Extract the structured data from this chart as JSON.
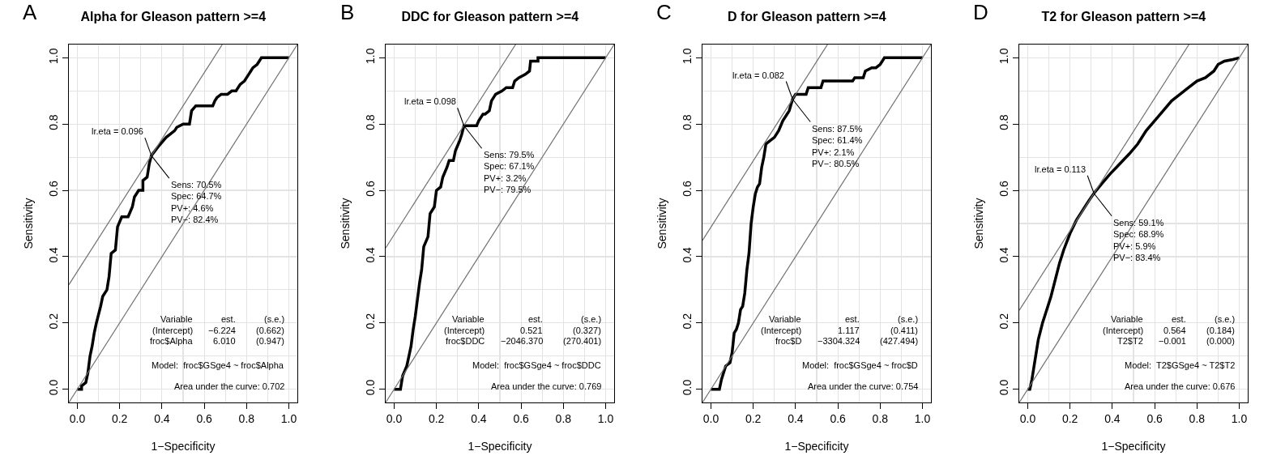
{
  "chart_data": [
    {
      "type": "line",
      "title": "Alpha for Gleason pattern >=4",
      "xlabel": "1−Specificity",
      "ylabel": "Sensitivity",
      "xlim": [
        -0.04,
        1.04
      ],
      "ylim": [
        -0.04,
        1.04
      ],
      "xticks": [
        {
          "value": 0,
          "label": "0.0"
        },
        {
          "value": 0.2,
          "label": "0.2"
        },
        {
          "value": 0.4,
          "label": "0.4"
        },
        {
          "value": 0.6,
          "label": "0.6"
        },
        {
          "value": 0.8,
          "label": "0.8"
        },
        {
          "value": 1,
          "label": "1.0"
        }
      ],
      "yticks": [
        {
          "value": 0,
          "label": "0.0"
        },
        {
          "value": 0.2,
          "label": "0.2"
        },
        {
          "value": 0.4,
          "label": "0.4"
        },
        {
          "value": 0.6,
          "label": "0.6"
        },
        {
          "value": 0.8,
          "label": "0.8"
        },
        {
          "value": 1,
          "label": "1.0"
        }
      ],
      "grid": true,
      "line_style": "solid",
      "series": [
        {
          "color": "#000000",
          "x": [
            0,
            0.02,
            0.02,
            0.04,
            0.05,
            0.06,
            0.07,
            0.08,
            0.09,
            0.11,
            0.12,
            0.14,
            0.15,
            0.16,
            0.18,
            0.19,
            0.21,
            0.24,
            0.26,
            0.27,
            0.29,
            0.31,
            0.31,
            0.33,
            0.34,
            0.35,
            0.38,
            0.42,
            0.46,
            0.47,
            0.5,
            0.53,
            0.54,
            0.56,
            0.64,
            0.65,
            0.66,
            0.68,
            0.71,
            0.73,
            0.75,
            0.77,
            0.79,
            0.8,
            0.81,
            0.82,
            0.83,
            0.85,
            0.86,
            0.87,
            1
          ],
          "values": [
            0,
            0,
            0.01,
            0.02,
            0.05,
            0.1,
            0.13,
            0.17,
            0.2,
            0.25,
            0.28,
            0.3,
            0.34,
            0.41,
            0.42,
            0.49,
            0.52,
            0.52,
            0.55,
            0.58,
            0.6,
            0.6,
            0.63,
            0.64,
            0.68,
            0.705,
            0.73,
            0.76,
            0.78,
            0.79,
            0.8,
            0.8,
            0.84,
            0.855,
            0.855,
            0.87,
            0.88,
            0.89,
            0.89,
            0.9,
            0.9,
            0.92,
            0.93,
            0.94,
            0.95,
            0.96,
            0.97,
            0.98,
            0.99,
            1,
            1
          ]
        },
        {
          "color": "#707070",
          "x": [
            -0.04,
            1.04
          ],
          "values": [
            -0.04,
            1.04
          ]
        },
        {
          "color": "#707070",
          "x": [
            -0.04,
            0.685
          ],
          "values": [
            0.315,
            1.04
          ]
        }
      ],
      "annotations": [
        "A",
        {
          "text": "lr.eta = 0.096",
          "x": 0.35,
          "y": 0.705
        },
        {
          "text": "Sens: 70.5%\nSpec: 64.7%\nPV+: 4.6%\nPV−: 82.4%",
          "x": 0.35,
          "y": 0.705
        },
        "Variable  est.  (s.e.)",
        "(Intercept)  −6.224  (0.662)",
        "froc$Alpha  6.010  (0.947)",
        "Model:  froc$GSge4 ~ froc$Alpha",
        "Area under the curve: 0.702"
      ]
    },
    {
      "type": "line",
      "title": "DDC for Gleason pattern >=4",
      "xlabel": "1−Specificity",
      "ylabel": "Sensitivity",
      "xlim": [
        -0.04,
        1.04
      ],
      "ylim": [
        -0.04,
        1.04
      ],
      "xticks": [
        {
          "value": 0,
          "label": "0.0"
        },
        {
          "value": 0.2,
          "label": "0.2"
        },
        {
          "value": 0.4,
          "label": "0.4"
        },
        {
          "value": 0.6,
          "label": "0.6"
        },
        {
          "value": 0.8,
          "label": "0.8"
        },
        {
          "value": 1,
          "label": "1.0"
        }
      ],
      "yticks": [
        {
          "value": 0,
          "label": "0.0"
        },
        {
          "value": 0.2,
          "label": "0.2"
        },
        {
          "value": 0.4,
          "label": "0.4"
        },
        {
          "value": 0.6,
          "label": "0.6"
        },
        {
          "value": 0.8,
          "label": "0.8"
        },
        {
          "value": 1,
          "label": "1.0"
        }
      ],
      "grid": true,
      "line_style": "solid",
      "series": [
        {
          "color": "#000000",
          "x": [
            0,
            0.03,
            0.04,
            0.06,
            0.07,
            0.08,
            0.09,
            0.1,
            0.11,
            0.12,
            0.13,
            0.14,
            0.16,
            0.17,
            0.19,
            0.2,
            0.22,
            0.23,
            0.25,
            0.26,
            0.28,
            0.29,
            0.31,
            0.32,
            0.33,
            0.39,
            0.4,
            0.42,
            0.43,
            0.45,
            0.46,
            0.48,
            0.51,
            0.53,
            0.56,
            0.57,
            0.59,
            0.62,
            0.64,
            0.645,
            0.68,
            0.68,
            1
          ],
          "values": [
            0,
            0,
            0.04,
            0.07,
            0.1,
            0.13,
            0.18,
            0.22,
            0.27,
            0.32,
            0.36,
            0.43,
            0.46,
            0.53,
            0.55,
            0.6,
            0.61,
            0.64,
            0.67,
            0.69,
            0.69,
            0.72,
            0.75,
            0.77,
            0.795,
            0.795,
            0.81,
            0.83,
            0.83,
            0.84,
            0.87,
            0.89,
            0.9,
            0.91,
            0.91,
            0.93,
            0.94,
            0.95,
            0.96,
            0.99,
            0.99,
            1,
            1
          ]
        },
        {
          "color": "#707070",
          "x": [
            -0.04,
            1.04
          ],
          "values": [
            -0.04,
            1.04
          ]
        },
        {
          "color": "#707070",
          "x": [
            -0.04,
            0.574
          ],
          "values": [
            0.426,
            1.04
          ]
        }
      ],
      "annotations": [
        "B",
        {
          "text": "lr.eta = 0.098",
          "x": 0.33,
          "y": 0.795
        },
        {
          "text": "Sens: 79.5%\nSpec: 67.1%\nPV+: 3.2%\nPV−: 79.5%",
          "x": 0.33,
          "y": 0.795
        },
        "Variable  est.  (s.e.)",
        "(Intercept)  0.521  (0.327)",
        "froc$DDC  −2046.370  (270.401)",
        "Model:  froc$GSge4 ~ froc$DDC",
        "Area under the curve: 0.769"
      ]
    },
    {
      "type": "line",
      "title": "D for Gleason pattern >=4",
      "xlabel": "1−Specificity",
      "ylabel": "Sensitivity",
      "xlim": [
        -0.04,
        1.04
      ],
      "ylim": [
        -0.04,
        1.04
      ],
      "xticks": [
        {
          "value": 0,
          "label": "0.0"
        },
        {
          "value": 0.2,
          "label": "0.2"
        },
        {
          "value": 0.4,
          "label": "0.4"
        },
        {
          "value": 0.6,
          "label": "0.6"
        },
        {
          "value": 0.8,
          "label": "0.8"
        },
        {
          "value": 1,
          "label": "1.0"
        }
      ],
      "yticks": [
        {
          "value": 0,
          "label": "0.0"
        },
        {
          "value": 0.2,
          "label": "0.2"
        },
        {
          "value": 0.4,
          "label": "0.4"
        },
        {
          "value": 0.6,
          "label": "0.6"
        },
        {
          "value": 0.8,
          "label": "0.8"
        },
        {
          "value": 1,
          "label": "1.0"
        }
      ],
      "grid": true,
      "line_style": "solid",
      "series": [
        {
          "color": "#000000",
          "x": [
            0,
            0.04,
            0.05,
            0.06,
            0.07,
            0.09,
            0.1,
            0.11,
            0.12,
            0.13,
            0.14,
            0.15,
            0.16,
            0.17,
            0.18,
            0.19,
            0.2,
            0.21,
            0.22,
            0.23,
            0.24,
            0.25,
            0.26,
            0.28,
            0.3,
            0.32,
            0.34,
            0.36,
            0.37,
            0.386,
            0.4,
            0.45,
            0.46,
            0.52,
            0.53,
            0.67,
            0.68,
            0.72,
            0.73,
            0.76,
            0.78,
            0.8,
            0.81,
            0.82,
            1
          ],
          "values": [
            0,
            0,
            0.03,
            0.05,
            0.07,
            0.08,
            0.11,
            0.17,
            0.18,
            0.2,
            0.24,
            0.25,
            0.29,
            0.36,
            0.41,
            0.5,
            0.55,
            0.59,
            0.61,
            0.62,
            0.67,
            0.7,
            0.74,
            0.75,
            0.76,
            0.78,
            0.81,
            0.83,
            0.84,
            0.875,
            0.89,
            0.89,
            0.91,
            0.91,
            0.93,
            0.93,
            0.94,
            0.94,
            0.96,
            0.97,
            0.97,
            0.98,
            0.99,
            1,
            1
          ]
        },
        {
          "color": "#707070",
          "x": [
            -0.04,
            1.04
          ],
          "values": [
            -0.04,
            1.04
          ]
        },
        {
          "color": "#707070",
          "x": [
            -0.04,
            0.551
          ],
          "values": [
            0.449,
            1.04
          ]
        }
      ],
      "annotations": [
        "C",
        {
          "text": "lr.eta = 0.082",
          "x": 0.386,
          "y": 0.875
        },
        {
          "text": "Sens: 87.5%\nSpec: 61.4%\nPV+: 2.1%\nPV−: 80.5%",
          "x": 0.386,
          "y": 0.875
        },
        "Variable  est.  (s.e.)",
        "(Intercept)  1.117  (0.411)",
        "froc$D  −3304.324  (427.494)",
        "Model:  froc$GSge4 ~ froc$D",
        "Area under the curve: 0.754"
      ]
    },
    {
      "type": "line",
      "title": "T2 for Gleason pattern >=4",
      "xlabel": "1−Specificity",
      "ylabel": "Sensitivity",
      "xlim": [
        -0.04,
        1.04
      ],
      "ylim": [
        -0.04,
        1.04
      ],
      "xticks": [
        {
          "value": 0,
          "label": "0.0"
        },
        {
          "value": 0.2,
          "label": "0.2"
        },
        {
          "value": 0.4,
          "label": "0.4"
        },
        {
          "value": 0.6,
          "label": "0.6"
        },
        {
          "value": 0.8,
          "label": "0.8"
        },
        {
          "value": 1,
          "label": "1.0"
        }
      ],
      "yticks": [
        {
          "value": 0,
          "label": "0.0"
        },
        {
          "value": 0.2,
          "label": "0.2"
        },
        {
          "value": 0.4,
          "label": "0.4"
        },
        {
          "value": 0.6,
          "label": "0.6"
        },
        {
          "value": 0.8,
          "label": "0.8"
        },
        {
          "value": 1,
          "label": "1.0"
        }
      ],
      "grid": true,
      "line_style": "solid",
      "series": [
        {
          "color": "#000000",
          "x": [
            0,
            0.01,
            0.02,
            0.03,
            0.04,
            0.05,
            0.07,
            0.09,
            0.11,
            0.13,
            0.15,
            0.17,
            0.2,
            0.23,
            0.26,
            0.29,
            0.313,
            0.35,
            0.39,
            0.42,
            0.45,
            0.48,
            0.52,
            0.56,
            0.6,
            0.64,
            0.68,
            0.72,
            0.76,
            0.8,
            0.84,
            0.88,
            0.9,
            0.93,
            0.97,
            1
          ],
          "values": [
            0,
            0,
            0.03,
            0.07,
            0.11,
            0.15,
            0.2,
            0.24,
            0.28,
            0.33,
            0.38,
            0.42,
            0.47,
            0.51,
            0.54,
            0.57,
            0.591,
            0.62,
            0.65,
            0.67,
            0.69,
            0.71,
            0.74,
            0.78,
            0.81,
            0.84,
            0.87,
            0.89,
            0.91,
            0.93,
            0.94,
            0.96,
            0.98,
            0.99,
            0.995,
            1
          ]
        },
        {
          "color": "#707070",
          "x": [
            -0.04,
            1.04
          ],
          "values": [
            -0.04,
            1.04
          ]
        },
        {
          "color": "#707070",
          "x": [
            -0.04,
            0.762
          ],
          "values": [
            0.238,
            1.04
          ]
        }
      ],
      "annotations": [
        "D",
        {
          "text": "lr.eta = 0.113",
          "x": 0.313,
          "y": 0.591
        },
        {
          "text": "Sens: 59.1%\nSpec: 68.9%\nPV+: 5.9%\nPV−: 83.4%",
          "x": 0.313,
          "y": 0.591
        },
        "Variable  est.  (s.e.)",
        "(Intercept)  0.564  (0.184)",
        "T2$T2  −0.001  (0.000)",
        "Model:  T2$GSge4 ~ T2$T2",
        "Area under the curve: 0.676"
      ]
    }
  ]
}
